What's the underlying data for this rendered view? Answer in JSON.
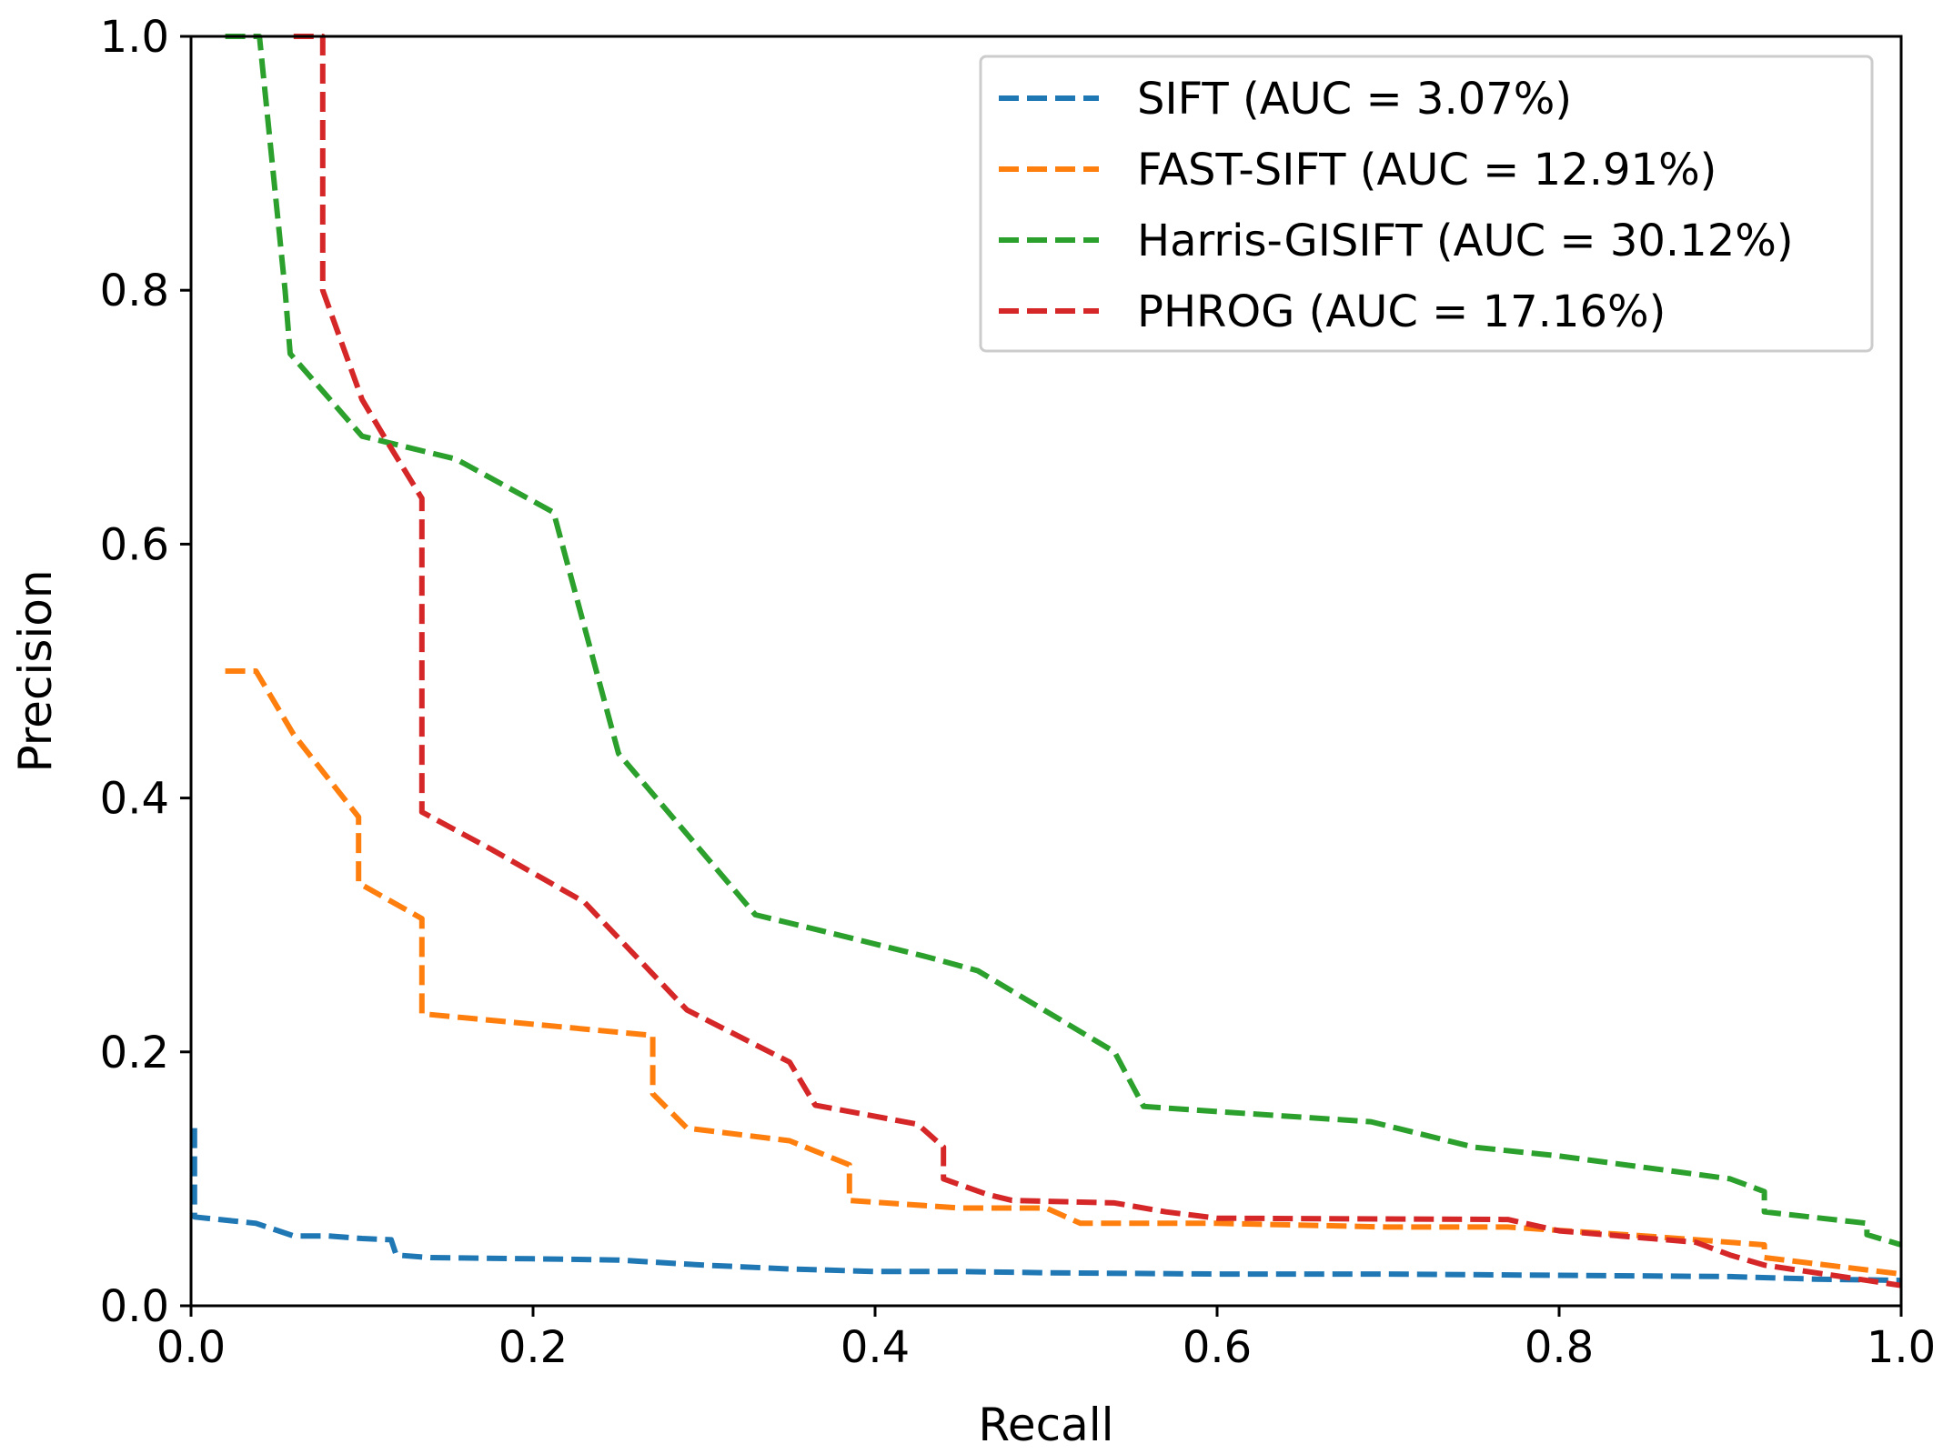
{
  "chart_data": {
    "type": "line",
    "title": "",
    "xlabel": "Recall",
    "ylabel": "Precision",
    "xlim": [
      0.0,
      1.0
    ],
    "ylim": [
      0.0,
      1.0
    ],
    "grid": false,
    "legend_position": "top-right",
    "xticks": [
      0.0,
      0.2,
      0.4,
      0.6,
      0.8,
      1.0
    ],
    "xtick_labels": [
      "0.0",
      "0.2",
      "0.4",
      "0.6",
      "0.8",
      "1.0"
    ],
    "yticks": [
      0.0,
      0.2,
      0.4,
      0.6,
      0.8,
      1.0
    ],
    "ytick_labels": [
      "0.0",
      "0.2",
      "0.4",
      "0.6",
      "0.8",
      "1.0"
    ],
    "series": [
      {
        "name": "SIFT (AUC = 3.07%)",
        "color": "#1f77b4",
        "x": [
          0.002,
          0.002,
          0.038,
          0.06,
          0.08,
          0.1,
          0.117,
          0.12,
          0.14,
          0.2,
          0.25,
          0.3,
          0.35,
          0.4,
          0.45,
          0.5,
          0.6,
          0.7,
          0.8,
          0.9,
          0.95,
          1.0
        ],
        "y": [
          0.14,
          0.07,
          0.065,
          0.055,
          0.055,
          0.053,
          0.052,
          0.04,
          0.038,
          0.037,
          0.036,
          0.032,
          0.029,
          0.027,
          0.027,
          0.026,
          0.025,
          0.025,
          0.024,
          0.023,
          0.021,
          0.02
        ]
      },
      {
        "name": "FAST-SIFT (AUC = 12.91%)",
        "color": "#ff7f0e",
        "x": [
          0.02,
          0.038,
          0.06,
          0.098,
          0.098,
          0.135,
          0.135,
          0.27,
          0.27,
          0.29,
          0.35,
          0.385,
          0.385,
          0.45,
          0.5,
          0.52,
          0.6,
          0.7,
          0.77,
          0.85,
          0.92,
          0.92,
          1.0
        ],
        "y": [
          0.5,
          0.5,
          0.45,
          0.385,
          0.333,
          0.305,
          0.23,
          0.213,
          0.167,
          0.14,
          0.13,
          0.111,
          0.083,
          0.077,
          0.077,
          0.065,
          0.065,
          0.062,
          0.062,
          0.055,
          0.048,
          0.038,
          0.025
        ]
      },
      {
        "name": "Harris-GISIFT (AUC = 30.12%)",
        "color": "#2ca02c",
        "x": [
          0.02,
          0.04,
          0.055,
          0.058,
          0.1,
          0.155,
          0.212,
          0.25,
          0.33,
          0.37,
          0.43,
          0.46,
          0.54,
          0.557,
          0.6,
          0.69,
          0.75,
          0.8,
          0.9,
          0.92,
          0.92,
          0.98,
          0.98,
          1.0
        ],
        "y": [
          1.0,
          1.0,
          0.8,
          0.75,
          0.685,
          0.667,
          0.625,
          0.435,
          0.308,
          0.295,
          0.275,
          0.264,
          0.2,
          0.157,
          0.153,
          0.145,
          0.125,
          0.118,
          0.1,
          0.09,
          0.074,
          0.065,
          0.056,
          0.048
        ]
      },
      {
        "name": "PHROG (AUC = 17.16%)",
        "color": "#d62728",
        "x": [
          0.06,
          0.077,
          0.077,
          0.1,
          0.115,
          0.135,
          0.135,
          0.175,
          0.23,
          0.29,
          0.35,
          0.365,
          0.425,
          0.44,
          0.44,
          0.465,
          0.48,
          0.54,
          0.57,
          0.6,
          0.77,
          0.8,
          0.88,
          0.9,
          0.92,
          1.0
        ],
        "y": [
          1.0,
          1.0,
          0.8,
          0.714,
          0.68,
          0.636,
          0.389,
          0.36,
          0.318,
          0.233,
          0.192,
          0.158,
          0.143,
          0.125,
          0.1,
          0.088,
          0.083,
          0.081,
          0.074,
          0.069,
          0.068,
          0.059,
          0.05,
          0.04,
          0.032,
          0.016
        ]
      }
    ]
  }
}
